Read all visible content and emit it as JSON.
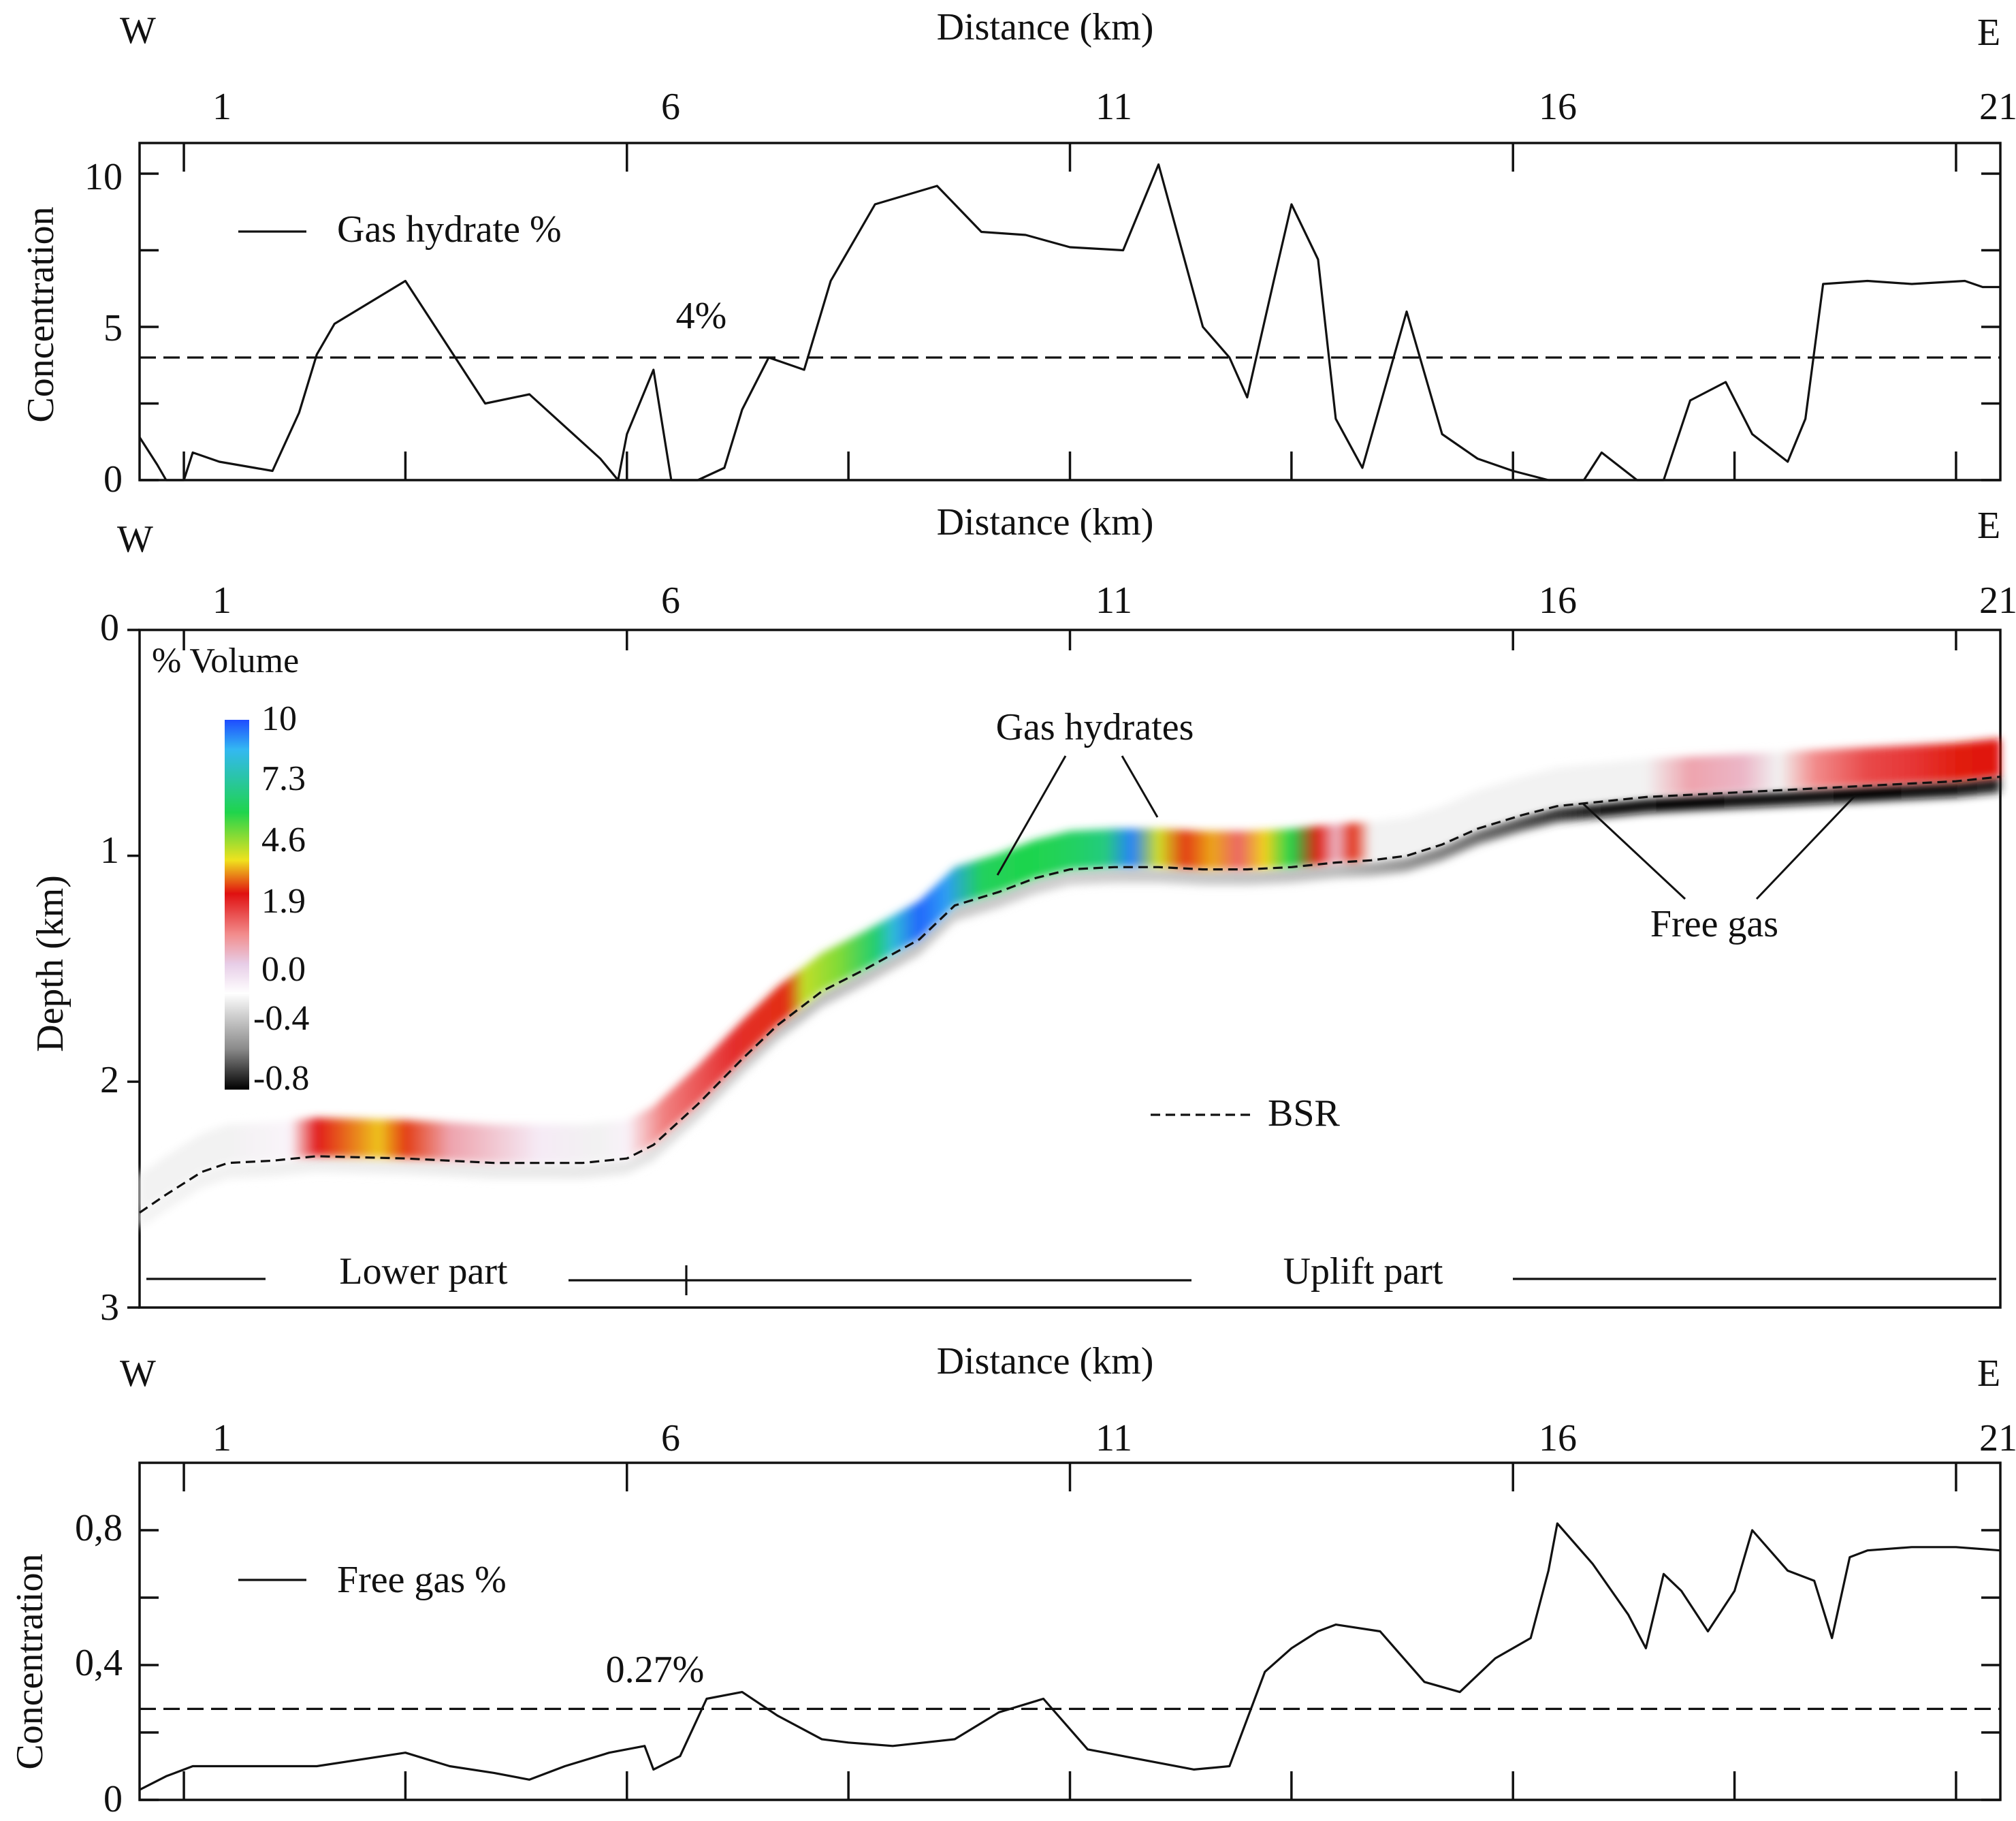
{
  "chart_data": [
    {
      "type": "line",
      "id": "gas-hydrate",
      "top_label_left": "W",
      "top_label_right": "E",
      "xlabel": "Distance (km)",
      "ylabel": "Concentration",
      "xlim": [
        -2.5,
        18.5
      ],
      "ylim": [
        0,
        11
      ],
      "x_ticks": [
        1,
        6,
        11,
        16,
        21
      ],
      "x_tick_values": [
        -2.0,
        3.0,
        8.0,
        13.0,
        18.0
      ],
      "y_ticks": [
        0,
        5,
        10
      ],
      "legend": "Gas hydrate %",
      "reference_line": {
        "value": 4,
        "label": "4%"
      },
      "series": [
        {
          "name": "Gas hydrate %",
          "x": [
            -2.5,
            -2.3,
            -2.2,
            -2.0,
            -1.9,
            -1.6,
            -1.2,
            -1.0,
            -0.7,
            -0.5,
            -0.3,
            0.5,
            1.4,
            1.9,
            2.7,
            2.9,
            3.0,
            3.3,
            3.5,
            3.8,
            4.1,
            4.3,
            4.6,
            5.0,
            5.3,
            5.6,
            5.8,
            6.5,
            7.0,
            7.5,
            8.0,
            8.6,
            9.0,
            9.5,
            9.8,
            10.0,
            10.3,
            10.5,
            10.8,
            11.0,
            11.3,
            11.8,
            12.2,
            12.6,
            13.0,
            13.4,
            13.8,
            14.0,
            14.4,
            14.7,
            15.0,
            15.4,
            15.7,
            16.1,
            16.3,
            16.5,
            17.0,
            17.5,
            18.1,
            18.3,
            18.5
          ],
          "y": [
            1.4,
            0.5,
            0.0,
            0.0,
            0.9,
            0.6,
            0.4,
            0.3,
            2.2,
            4.1,
            5.1,
            6.5,
            2.5,
            2.8,
            0.7,
            0.0,
            1.5,
            3.6,
            0.0,
            0.0,
            0.4,
            2.3,
            4.0,
            3.6,
            6.5,
            8.0,
            9.0,
            9.6,
            8.1,
            8.0,
            7.6,
            7.5,
            10.3,
            5.0,
            4.0,
            2.7,
            6.5,
            9.0,
            7.2,
            2.0,
            0.4,
            5.5,
            1.5,
            0.7,
            0.3,
            0.0,
            0.0,
            0.9,
            0.0,
            0.0,
            2.6,
            3.2,
            1.5,
            0.6,
            2.0,
            6.4,
            6.5,
            6.4,
            6.5,
            6.3,
            6.3
          ]
        }
      ]
    },
    {
      "type": "heatmap",
      "id": "volume-section",
      "top_label_left": "W",
      "top_label_right": "E",
      "xlabel": "Distance (km)",
      "ylabel": "Depth (km)",
      "xlim": [
        -2.5,
        18.5
      ],
      "ylim": [
        0,
        3
      ],
      "x_ticks": [
        1,
        6,
        11,
        16,
        21
      ],
      "x_tick_values": [
        -2.0,
        3.0,
        8.0,
        13.0,
        18.0
      ],
      "y_ticks": [
        0,
        1,
        2,
        3
      ],
      "colorbar_title": "% Volume",
      "colorbar_ticks": [
        "10",
        "7.3",
        "4.6",
        "1.9",
        "0.0",
        "-0.4",
        "-0.8"
      ],
      "colorbar_colors": [
        "#1e4cff",
        "#33b8f2",
        "#1fd44c",
        "#f0e21e",
        "#e01010",
        "#f28c8c",
        "#e7cde7",
        "#ffffff",
        "#cfcfcf",
        "#8a8a8a",
        "#000000"
      ],
      "bsr_label": "BSR",
      "annotations": {
        "gas_hydrates": "Gas hydrates",
        "free_gas": "Free gas",
        "lower_part": "Lower part",
        "uplift_part": "Uplift part"
      },
      "bsr": {
        "x": [
          -2.5,
          -2.2,
          -1.8,
          -1.5,
          -1.0,
          -0.5,
          0.5,
          1.5,
          2.5,
          3.0,
          3.3,
          3.8,
          4.3,
          4.7,
          5.2,
          5.7,
          6.3,
          6.7,
          7.2,
          7.6,
          8.0,
          8.5,
          9.0,
          9.5,
          10.0,
          10.5,
          11.0,
          11.4,
          11.8,
          12.2,
          12.6,
          13.1,
          13.5,
          14.0,
          14.5,
          15.0,
          15.5,
          16.0,
          16.5,
          17.0,
          17.5,
          18.0,
          18.5
        ],
        "y": [
          2.58,
          2.5,
          2.4,
          2.36,
          2.35,
          2.33,
          2.34,
          2.36,
          2.36,
          2.34,
          2.28,
          2.1,
          1.9,
          1.75,
          1.6,
          1.5,
          1.37,
          1.22,
          1.16,
          1.1,
          1.06,
          1.05,
          1.05,
          1.06,
          1.06,
          1.05,
          1.03,
          1.02,
          1.0,
          0.95,
          0.88,
          0.82,
          0.78,
          0.76,
          0.74,
          0.73,
          0.72,
          0.71,
          0.7,
          0.69,
          0.68,
          0.67,
          0.65
        ]
      },
      "hydrate_values": {
        "x": [
          -2.5,
          -1.5,
          -0.8,
          -0.5,
          0.2,
          0.5,
          1.0,
          2.0,
          2.7,
          3.0,
          3.4,
          4.2,
          4.8,
          5.0,
          5.4,
          5.8,
          6.0,
          6.3,
          6.6,
          7.0,
          7.5,
          7.8,
          8.1,
          8.4,
          8.7,
          9.0,
          9.3,
          9.6,
          9.9,
          10.2,
          10.5,
          10.8,
          11.0,
          11.2,
          11.4,
          11.8,
          12.2,
          13.0,
          13.8,
          14.5,
          15.0,
          15.6,
          16.0,
          16.4,
          17.0,
          17.5,
          18.0,
          18.5
        ],
        "y": [
          0.0,
          0.0,
          0.4,
          4.5,
          5.8,
          4.9,
          2.8,
          0.8,
          0.0,
          0.5,
          3.4,
          4.3,
          4.8,
          6.3,
          6.7,
          7.7,
          8.9,
          9.8,
          9.4,
          7.5,
          7.3,
          7.4,
          7.6,
          7.9,
          9.6,
          6.2,
          4.9,
          5.6,
          3.7,
          5.9,
          7.3,
          4.7,
          2.4,
          4.8,
          0.0,
          0.0,
          0.0,
          0.0,
          0.0,
          0.0,
          2.8,
          2.4,
          0.0,
          3.3,
          4.0,
          4.2,
          4.7,
          4.6
        ]
      },
      "free_gas_values": {
        "x": [
          -2.5,
          3.0,
          5.0,
          8.0,
          11.0,
          12.0,
          13.0,
          14.0,
          15.0,
          16.0,
          17.0,
          18.0,
          18.5
        ],
        "y": [
          -0.05,
          -0.1,
          -0.25,
          -0.2,
          -0.25,
          -0.4,
          -0.55,
          -0.75,
          -0.8,
          -0.75,
          -0.8,
          -0.75,
          -0.7
        ]
      }
    },
    {
      "type": "line",
      "id": "free-gas",
      "top_label_left": "W",
      "top_label_right": "E",
      "xlabel": "Distance (km)",
      "ylabel": "Concentration",
      "xlim": [
        -2.5,
        18.5
      ],
      "ylim": [
        0,
        1.0
      ],
      "x_ticks": [
        1,
        6,
        11,
        16,
        21
      ],
      "x_tick_values": [
        -2.0,
        3.0,
        8.0,
        13.0,
        18.0
      ],
      "y_ticks": [
        "0",
        "0,4",
        "0,8"
      ],
      "y_tick_values": [
        0,
        0.4,
        0.8
      ],
      "legend": "Free gas %",
      "reference_line": {
        "value": 0.27,
        "label": "0.27%"
      },
      "series": [
        {
          "name": "Free gas %",
          "x": [
            -2.5,
            -2.2,
            -2.1,
            -1.9,
            -1.5,
            -0.5,
            0.5,
            1.0,
            1.5,
            1.9,
            2.3,
            2.8,
            3.2,
            3.3,
            3.6,
            3.9,
            4.3,
            4.7,
            5.2,
            5.5,
            6.0,
            6.7,
            7.2,
            7.7,
            8.2,
            8.4,
            8.6,
            9.0,
            9.4,
            9.8,
            10.2,
            10.5,
            10.8,
            11.0,
            11.5,
            12.0,
            12.4,
            12.8,
            13.2,
            13.4,
            13.5,
            13.9,
            14.3,
            14.5,
            14.7,
            14.9,
            15.2,
            15.5,
            15.7,
            16.1,
            16.4,
            16.6,
            16.8,
            17.0,
            17.5,
            18.0,
            18.5
          ],
          "y": [
            0.03,
            0.07,
            0.08,
            0.1,
            0.1,
            0.1,
            0.14,
            0.1,
            0.08,
            0.06,
            0.1,
            0.14,
            0.16,
            0.09,
            0.13,
            0.3,
            0.32,
            0.25,
            0.18,
            0.17,
            0.16,
            0.18,
            0.26,
            0.3,
            0.15,
            0.14,
            0.13,
            0.11,
            0.09,
            0.1,
            0.38,
            0.45,
            0.5,
            0.52,
            0.5,
            0.35,
            0.32,
            0.42,
            0.48,
            0.68,
            0.82,
            0.7,
            0.55,
            0.45,
            0.67,
            0.62,
            0.5,
            0.62,
            0.8,
            0.68,
            0.65,
            0.48,
            0.72,
            0.74,
            0.75,
            0.75,
            0.74
          ]
        }
      ]
    }
  ]
}
